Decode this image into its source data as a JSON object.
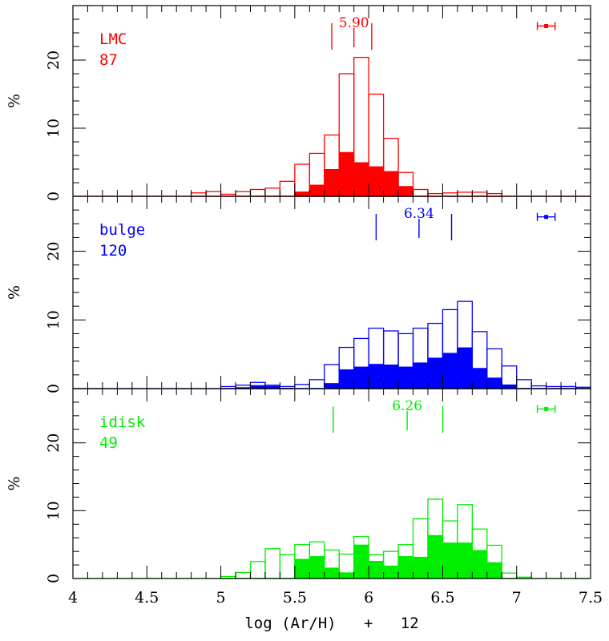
{
  "chart_data": [
    {
      "type": "bar",
      "name": "LMC",
      "color": "#ff0000",
      "label": "LMC",
      "count": "87",
      "median_label": "5.90",
      "median": 5.9,
      "range": [
        5.75,
        6.02
      ],
      "ylabel": "%",
      "ylim": [
        0,
        28
      ],
      "yticks": [
        "0",
        "10",
        "20"
      ],
      "bin_edges": [
        4.0,
        4.1,
        4.2,
        4.3,
        4.4,
        4.5,
        4.6,
        4.7,
        4.8,
        4.9,
        5.0,
        5.1,
        5.2,
        5.3,
        5.4,
        5.5,
        5.6,
        5.7,
        5.8,
        5.9,
        6.0,
        6.1,
        6.2,
        6.3,
        6.4,
        6.5,
        6.6,
        6.7,
        6.8,
        6.9,
        7.0,
        7.1,
        7.2,
        7.3,
        7.4,
        7.5
      ],
      "total": [
        0,
        0,
        0,
        0,
        0,
        0,
        0,
        0,
        0.5,
        0.7,
        0.3,
        0.7,
        1.0,
        1.2,
        2.2,
        4.7,
        6.3,
        9.0,
        18.0,
        20.4,
        15.0,
        8.5,
        3.5,
        1.0,
        0.4,
        0.5,
        0.6,
        0.6,
        0.4,
        0,
        0,
        0,
        0,
        0,
        0
      ],
      "filled": [
        0,
        0,
        0,
        0,
        0,
        0,
        0,
        0,
        0,
        0,
        0,
        0,
        0,
        0,
        0,
        0.7,
        1.7,
        4.0,
        6.5,
        5.0,
        4.4,
        3.7,
        1.5,
        0,
        0,
        0,
        0,
        0,
        0,
        0,
        0,
        0,
        0,
        0,
        0
      ]
    },
    {
      "type": "bar",
      "name": "bulge",
      "color": "#0000ff",
      "label": "bulge",
      "count": "120",
      "median_label": "6.34",
      "median": 6.34,
      "range": [
        6.05,
        6.56
      ],
      "ylabel": "%",
      "ylim": [
        0,
        28
      ],
      "yticks": [
        "0",
        "10",
        "20"
      ],
      "bin_edges": [
        4.0,
        4.1,
        4.2,
        4.3,
        4.4,
        4.5,
        4.6,
        4.7,
        4.8,
        4.9,
        5.0,
        5.1,
        5.2,
        5.3,
        5.4,
        5.5,
        5.6,
        5.7,
        5.8,
        5.9,
        6.0,
        6.1,
        6.2,
        6.3,
        6.4,
        6.5,
        6.6,
        6.7,
        6.8,
        6.9,
        7.0,
        7.1,
        7.2,
        7.3,
        7.4,
        7.5
      ],
      "total": [
        0,
        0,
        0,
        0,
        0,
        0,
        0,
        0,
        0,
        0,
        0.3,
        0.5,
        0.9,
        0.5,
        0.3,
        0.6,
        1.3,
        3.5,
        6.0,
        7.3,
        8.8,
        8.4,
        8.0,
        8.8,
        9.5,
        11.5,
        12.7,
        8.3,
        5.8,
        3.3,
        1.3,
        0.4,
        0.3,
        0.3,
        0.2
      ],
      "filled": [
        0,
        0,
        0,
        0,
        0,
        0,
        0,
        0,
        0,
        0,
        0,
        0.2,
        0.5,
        0.4,
        0.1,
        0,
        0,
        0.8,
        2.8,
        3.2,
        3.6,
        3.5,
        3.2,
        3.8,
        4.5,
        5.2,
        6.0,
        3.0,
        1.6,
        0.6,
        0,
        0,
        0,
        0,
        0
      ]
    },
    {
      "type": "bar",
      "name": "idisk",
      "color": "#00ee00",
      "label": "idisk",
      "count": "49",
      "median_label": "6.26",
      "median": 6.26,
      "range": [
        5.76,
        6.5
      ],
      "ylabel": "%",
      "ylim": [
        0,
        28
      ],
      "yticks": [
        "0",
        "10",
        "20"
      ],
      "bin_edges": [
        4.0,
        4.1,
        4.2,
        4.3,
        4.4,
        4.5,
        4.6,
        4.7,
        4.8,
        4.9,
        5.0,
        5.1,
        5.2,
        5.3,
        5.4,
        5.5,
        5.6,
        5.7,
        5.8,
        5.9,
        6.0,
        6.1,
        6.2,
        6.3,
        6.4,
        6.5,
        6.6,
        6.7,
        6.8,
        6.9,
        7.0,
        7.1,
        7.2,
        7.3,
        7.4,
        7.5
      ],
      "total": [
        0,
        0,
        0,
        0,
        0,
        0,
        0,
        0,
        0,
        0,
        0.3,
        0.9,
        2.5,
        4.4,
        3.5,
        5.0,
        5.4,
        4.2,
        3.6,
        6.2,
        3.5,
        4.0,
        5.0,
        8.8,
        11.7,
        8.5,
        10.9,
        7.3,
        4.9,
        0.8,
        0.2,
        0,
        0,
        0,
        0
      ],
      "filled": [
        0,
        0,
        0,
        0,
        0,
        0,
        0,
        0,
        0,
        0,
        0,
        0,
        0,
        0,
        0,
        2.9,
        3.3,
        1.6,
        0.9,
        5.0,
        2.6,
        1.9,
        3.3,
        3.2,
        6.4,
        5.3,
        5.3,
        4.2,
        2.4,
        0,
        0,
        0,
        0,
        0,
        0
      ]
    }
  ],
  "x_axis": {
    "xlim": [
      4,
      7.5
    ],
    "ticks": [
      "4",
      "4.5",
      "5",
      "5.5",
      "6",
      "6.5",
      "7",
      "7.5"
    ],
    "label": "log (Ar/H)   +   12"
  },
  "error_bar": {
    "center": 7.2,
    "half_width": 0.06,
    "y": 25
  }
}
